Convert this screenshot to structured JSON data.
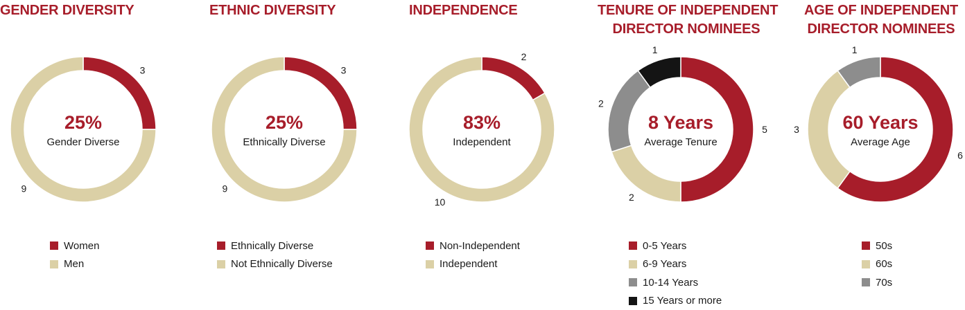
{
  "colors": {
    "red": "#a71d2a",
    "beige": "#dbd0a6",
    "gray": "#8d8d8d",
    "black": "#141414",
    "title": "#a71d2a"
  },
  "chart_data": [
    {
      "type": "pie",
      "donut": true,
      "title": "GENDER DIVERSITY",
      "center_value": "25%",
      "center_label": "Gender Diverse",
      "slices": [
        {
          "label": "Women",
          "value": 3,
          "color": "#a71d2a"
        },
        {
          "label": "Men",
          "value": 9,
          "color": "#dbd0a6"
        }
      ]
    },
    {
      "type": "pie",
      "donut": true,
      "title": "ETHNIC DIVERSITY",
      "center_value": "25%",
      "center_label": "Ethnically Diverse",
      "slices": [
        {
          "label": "Ethnically Diverse",
          "value": 3,
          "color": "#a71d2a"
        },
        {
          "label": "Not Ethnically Diverse",
          "value": 9,
          "color": "#dbd0a6"
        }
      ]
    },
    {
      "type": "pie",
      "donut": true,
      "title": "INDEPENDENCE",
      "center_value": "83%",
      "center_label": "Independent",
      "slices": [
        {
          "label": "Non-Independent",
          "value": 2,
          "color": "#a71d2a"
        },
        {
          "label": "Independent",
          "value": 10,
          "color": "#dbd0a6"
        }
      ]
    },
    {
      "type": "pie",
      "donut": true,
      "title": "TENURE OF INDEPENDENT DIRECTOR NOMINEES",
      "title_lines": [
        "TENURE OF INDEPENDENT",
        "DIRECTOR NOMINEES"
      ],
      "center_value": "8 Years",
      "center_label": "Average Tenure",
      "slices": [
        {
          "label": "0-5 Years",
          "value": 5,
          "color": "#a71d2a"
        },
        {
          "label": "6-9 Years",
          "value": 2,
          "color": "#dbd0a6"
        },
        {
          "label": "10-14 Years",
          "value": 2,
          "color": "#8d8d8d"
        },
        {
          "label": "15 Years or more",
          "value": 1,
          "color": "#141414"
        }
      ]
    },
    {
      "type": "pie",
      "donut": true,
      "title": "AGE OF INDEPENDENT DIRECTOR NOMINEES",
      "title_lines": [
        "AGE OF INDEPENDENT",
        "DIRECTOR NOMINEES"
      ],
      "center_value": "60 Years",
      "center_label": "Average Age",
      "slices": [
        {
          "label": "50s",
          "value": 6,
          "color": "#a71d2a"
        },
        {
          "label": "60s",
          "value": 3,
          "color": "#dbd0a6"
        },
        {
          "label": "70s",
          "value": 1,
          "color": "#8d8d8d"
        }
      ]
    }
  ]
}
